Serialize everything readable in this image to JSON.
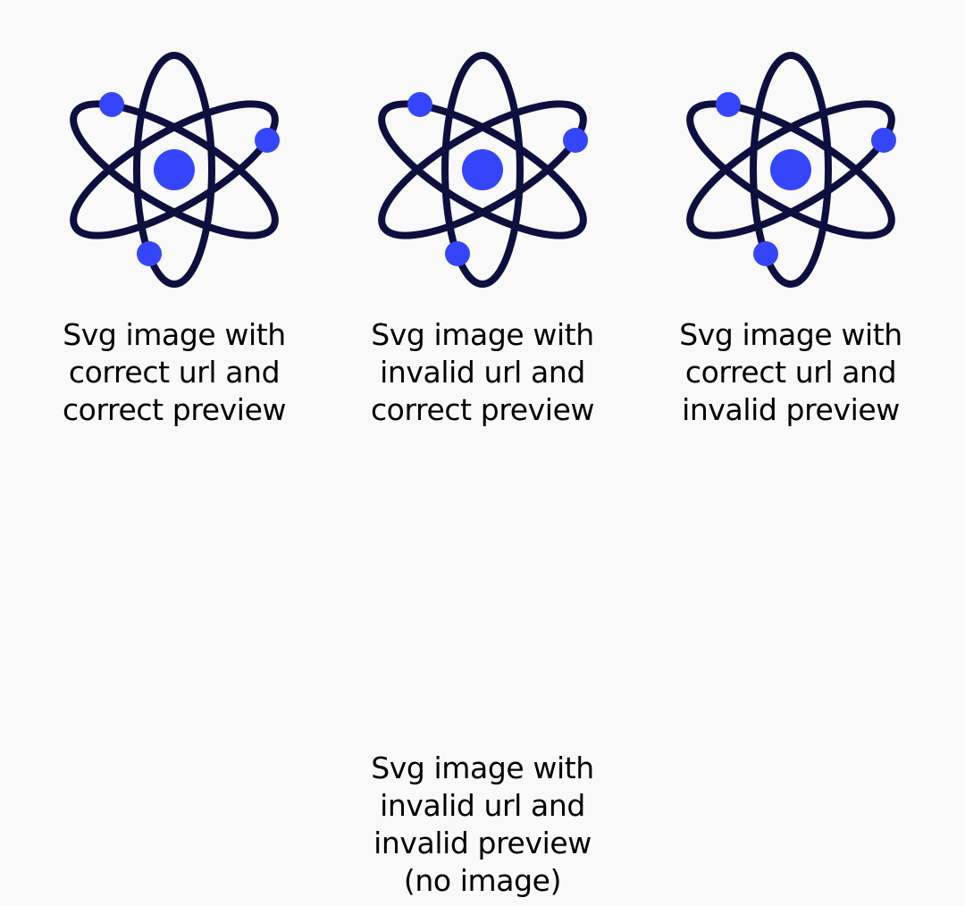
{
  "colors": {
    "background": "#f9f9f9",
    "orbit": "#0d0f3f",
    "particle": "#3546fa",
    "text": "#000000"
  },
  "items": [
    {
      "caption": "Svg image with correct url and correct preview",
      "icon": "atom-icon",
      "image_visible": true
    },
    {
      "caption": "Svg image with invalid url and correct preview",
      "icon": "atom-icon",
      "image_visible": true
    },
    {
      "caption": "Svg image with correct url and invalid preview",
      "icon": "atom-icon",
      "image_visible": true
    },
    {
      "caption": "Svg image with invalid url and invalid preview (no image)",
      "icon": "atom-icon",
      "image_visible": false
    }
  ]
}
